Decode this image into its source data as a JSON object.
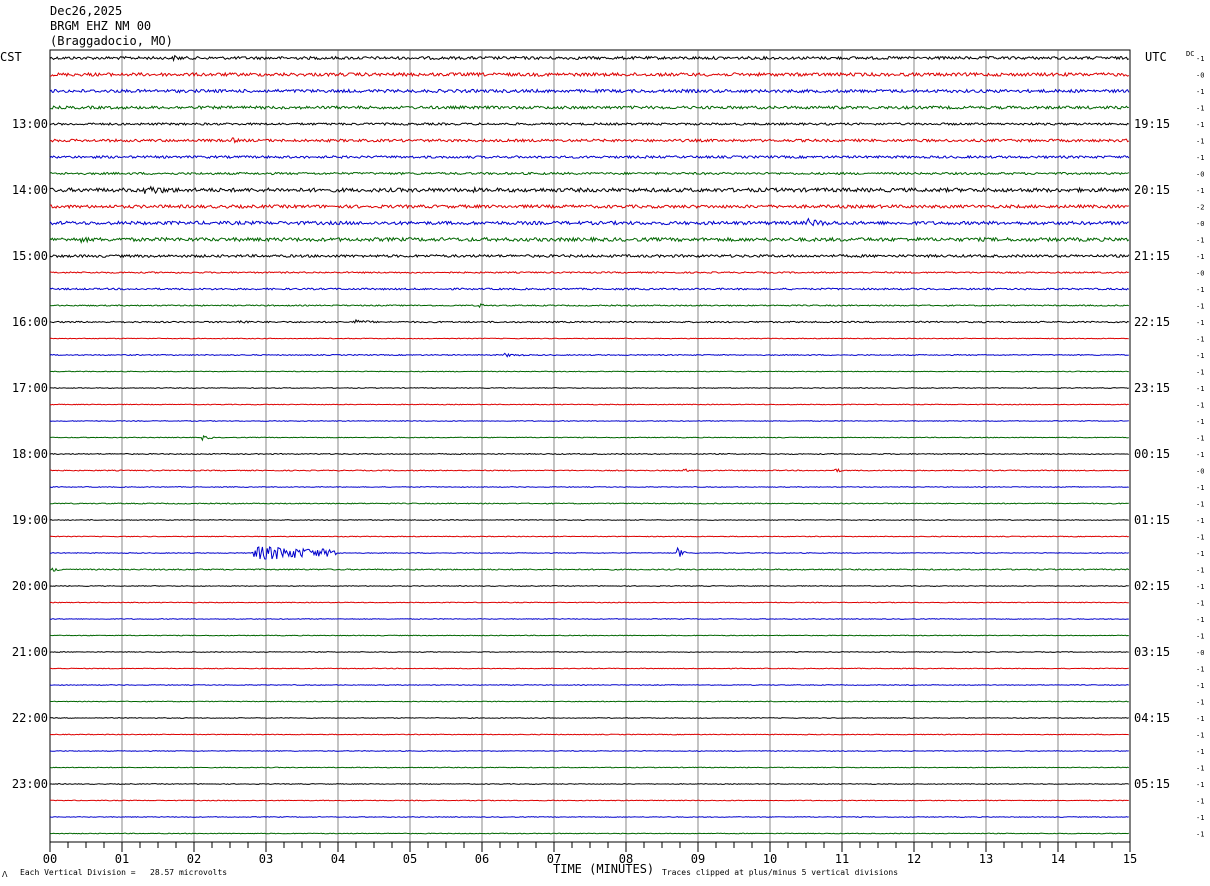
{
  "header": {
    "date": "Dec26,2025",
    "station": "BRGM EHZ NM 00",
    "location": "(Braggadocio, MO)"
  },
  "labels": {
    "left_tz": "CST",
    "right_tz": "UTC",
    "dc_label": "DC",
    "xlabel": "TIME (MINUTES)",
    "scale_note": "Each Vertical Division =   28.57 microvolts",
    "clip_note": "Traces clipped at plus/minus 5 vertical divisions",
    "corner_mark": "ᐱ"
  },
  "chart_data": {
    "type": "line",
    "title": "BRGM EHZ NM 00",
    "xlabel": "TIME (MINUTES)",
    "xlim": [
      0,
      15
    ],
    "x_ticks": [
      "00",
      "01",
      "02",
      "03",
      "04",
      "05",
      "06",
      "07",
      "08",
      "09",
      "10",
      "11",
      "12",
      "13",
      "14",
      "15"
    ],
    "row_minutes": 15,
    "trace_count": 48,
    "trace_colors": [
      "#000000",
      "#dd0000",
      "#0000cc",
      "#006600"
    ],
    "left_hour_labels": [
      {
        "row": 4,
        "text": "13:00"
      },
      {
        "row": 8,
        "text": "14:00"
      },
      {
        "row": 12,
        "text": "15:00"
      },
      {
        "row": 16,
        "text": "16:00"
      },
      {
        "row": 20,
        "text": "17:00"
      },
      {
        "row": 24,
        "text": "18:00"
      },
      {
        "row": 28,
        "text": "19:00"
      },
      {
        "row": 32,
        "text": "20:00"
      },
      {
        "row": 36,
        "text": "21:00"
      },
      {
        "row": 40,
        "text": "22:00"
      },
      {
        "row": 44,
        "text": "23:00"
      }
    ],
    "right_hour_labels": [
      {
        "row": 4,
        "text": "19:15"
      },
      {
        "row": 8,
        "text": "20:15"
      },
      {
        "row": 12,
        "text": "21:15"
      },
      {
        "row": 16,
        "text": "22:15"
      },
      {
        "row": 20,
        "text": "23:15"
      },
      {
        "row": 24,
        "text": "00:15"
      },
      {
        "row": 28,
        "text": "01:15"
      },
      {
        "row": 32,
        "text": "02:15"
      },
      {
        "row": 36,
        "text": "03:15"
      },
      {
        "row": 40,
        "text": "04:15"
      },
      {
        "row": 44,
        "text": "05:15"
      }
    ],
    "dc_offsets": [
      "-1",
      "-0",
      "-1",
      "-1",
      "-1",
      "-1",
      "-1",
      "-0",
      "-1",
      "-2",
      "-0",
      "-1",
      "-1",
      "-0",
      "-1",
      "-1",
      "-1",
      "-1",
      "-1",
      "-1",
      "-1",
      "-1",
      "-1",
      "-1",
      "-1",
      "-0",
      "-1",
      "-1",
      "-1",
      "-1",
      "-1",
      "-1",
      "-1",
      "-1",
      "-1",
      "-1",
      "-0",
      "-1",
      "-1",
      "-1",
      "-1",
      "-1",
      "-1",
      "-1",
      "-1",
      "-1",
      "-1",
      "-1"
    ],
    "noise_amplitude_divs": [
      1.2,
      1.4,
      1.3,
      1.2,
      0.9,
      1.1,
      1.0,
      0.9,
      1.6,
      1.3,
      1.4,
      1.5,
      1.1,
      0.6,
      0.7,
      0.5,
      0.6,
      0.3,
      0.4,
      0.3,
      0.3,
      0.3,
      0.3,
      0.3,
      0.4,
      0.4,
      0.3,
      0.4,
      0.3,
      0.3,
      0.3,
      0.5,
      0.3,
      0.3,
      0.3,
      0.3,
      0.3,
      0.3,
      0.3,
      0.3,
      0.3,
      0.3,
      0.3,
      0.3,
      0.3,
      0.3,
      0.3,
      0.3
    ],
    "events": [
      {
        "row": 0,
        "minute": 1.7,
        "duration": 0.4,
        "amplitude_divs": 2
      },
      {
        "row": 5,
        "minute": 2.5,
        "duration": 0.3,
        "amplitude_divs": 2
      },
      {
        "row": 8,
        "minute": 1.3,
        "duration": 0.5,
        "amplitude_divs": 4
      },
      {
        "row": 8,
        "minute": 5.8,
        "duration": 0.5,
        "amplitude_divs": 2
      },
      {
        "row": 10,
        "minute": 10.5,
        "duration": 0.6,
        "amplitude_divs": 3
      },
      {
        "row": 11,
        "minute": 0.4,
        "duration": 0.6,
        "amplitude_divs": 2
      },
      {
        "row": 15,
        "minute": 5.95,
        "duration": 0.1,
        "amplitude_divs": 2
      },
      {
        "row": 16,
        "minute": 2.6,
        "duration": 0.2,
        "amplitude_divs": 2
      },
      {
        "row": 16,
        "minute": 4.2,
        "duration": 0.3,
        "amplitude_divs": 2
      },
      {
        "row": 18,
        "minute": 6.3,
        "duration": 0.3,
        "amplitude_divs": 1.5
      },
      {
        "row": 23,
        "minute": 2.1,
        "duration": 0.15,
        "amplitude_divs": 2
      },
      {
        "row": 25,
        "minute": 8.8,
        "duration": 0.1,
        "amplitude_divs": 2.5
      },
      {
        "row": 25,
        "minute": 10.9,
        "duration": 0.1,
        "amplitude_divs": 2
      },
      {
        "row": 30,
        "minute": 2.8,
        "duration": 1.2,
        "amplitude_divs": 7
      },
      {
        "row": 30,
        "minute": 8.7,
        "duration": 0.15,
        "amplitude_divs": 4
      },
      {
        "row": 31,
        "minute": 0.0,
        "duration": 0.3,
        "amplitude_divs": 1.5
      }
    ]
  }
}
